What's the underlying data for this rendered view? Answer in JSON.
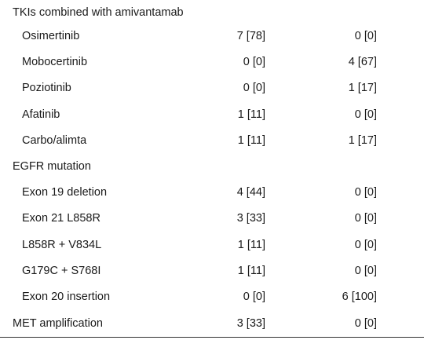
{
  "rows": [
    {
      "label": "TKIs combined with amivantamab",
      "c1": "",
      "c2": "",
      "type": "header"
    },
    {
      "label": "Osimertinib",
      "c1": "7 [78]",
      "c2": "0 [0]",
      "type": "sub"
    },
    {
      "label": "Mobocertinib",
      "c1": "0 [0]",
      "c2": "4 [67]",
      "type": "sub"
    },
    {
      "label": "Poziotinib",
      "c1": "0 [0]",
      "c2": "1 [17]",
      "type": "sub"
    },
    {
      "label": "Afatinib",
      "c1": "1 [11]",
      "c2": "0 [0]",
      "type": "sub"
    },
    {
      "label": "Carbo/alimta",
      "c1": "1 [11]",
      "c2": "1 [17]",
      "type": "sub"
    },
    {
      "label": "EGFR mutation",
      "c1": "",
      "c2": "",
      "type": "header"
    },
    {
      "label": "Exon 19 deletion",
      "c1": "4 [44]",
      "c2": "0 [0]",
      "type": "sub"
    },
    {
      "label": "Exon 21 L858R",
      "c1": "3 [33]",
      "c2": "0 [0]",
      "type": "sub"
    },
    {
      "label": "L858R + V834L",
      "c1": "1 [11]",
      "c2": "0 [0]",
      "type": "sub"
    },
    {
      "label": "G179C + S768I",
      "c1": "1 [11]",
      "c2": "0 [0]",
      "type": "sub"
    },
    {
      "label": "Exon 20 insertion",
      "c1": "0 [0]",
      "c2": "6 [100]",
      "type": "sub"
    },
    {
      "label": "MET amplification",
      "c1": "3 [33]",
      "c2": "0 [0]",
      "type": "header"
    }
  ]
}
